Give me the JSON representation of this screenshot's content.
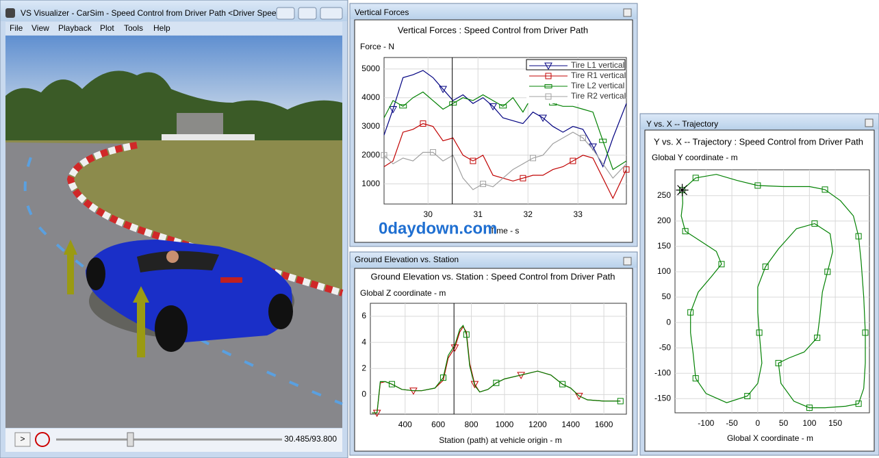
{
  "visualizer": {
    "window_title": "VS Visualizer - CarSim - Speed Control from Driver Path <Driver Spee...",
    "menu": [
      "File",
      "View",
      "Playback",
      "Plot",
      "Tools",
      "Help"
    ],
    "play_button": ">",
    "time": "30.485/93.800"
  },
  "watermark": "0daydown.com",
  "chart_data": [
    {
      "type": "line",
      "window_title": "Vertical Forces",
      "title": "Vertical Forces : Speed Control from Driver Path",
      "y_label": "Force - N",
      "x_label": "Time - s",
      "x": [
        29.12,
        29.3,
        29.5,
        29.7,
        29.9,
        30.1,
        30.3,
        30.5,
        30.7,
        30.9,
        31.1,
        31.3,
        31.5,
        31.7,
        31.9,
        32.1,
        32.3,
        32.5,
        32.7,
        32.9,
        33.1,
        33.3,
        33.5,
        33.7,
        33.97
      ],
      "series": [
        {
          "name": "Tire L1 vertical",
          "color": "#000080",
          "marker": "triangle",
          "values": [
            2700,
            3600,
            4700,
            4800,
            4950,
            4700,
            4300,
            3900,
            4100,
            3800,
            4000,
            3700,
            3300,
            3200,
            3100,
            3500,
            3300,
            3000,
            2800,
            3000,
            2900,
            2300,
            1600,
            2600,
            3800
          ]
        },
        {
          "name": "Tire R1 vertical",
          "color": "#c00000",
          "marker": "square",
          "values": [
            1600,
            1800,
            2800,
            2900,
            3100,
            3000,
            2500,
            2600,
            2000,
            1800,
            2000,
            1300,
            1200,
            1100,
            1200,
            1300,
            1300,
            1500,
            1600,
            1800,
            2000,
            1900,
            1200,
            500,
            1500
          ]
        },
        {
          "name": "Tire L2 vertical",
          "color": "#008000",
          "marker": "bar",
          "values": [
            3300,
            3900,
            3700,
            4000,
            4200,
            3900,
            3600,
            3800,
            4000,
            3900,
            4100,
            3900,
            3700,
            4000,
            3500,
            4100,
            3900,
            3800,
            3700,
            3700,
            3600,
            3500,
            2500,
            1500,
            1800
          ]
        },
        {
          "name": "Tire R2 vertical",
          "color": "#a0a0a0",
          "marker": "square",
          "values": [
            2000,
            1700,
            1900,
            1800,
            2100,
            2100,
            1800,
            2000,
            1200,
            800,
            1000,
            900,
            1200,
            1500,
            1700,
            1900,
            2000,
            2400,
            2600,
            2800,
            2600,
            2200,
            1700,
            1200,
            1700
          ]
        }
      ],
      "xlim": [
        29.12,
        33.97
      ],
      "ylim": [
        300,
        5400
      ],
      "xticks": [
        30,
        31,
        32,
        33
      ],
      "yticks": [
        1000,
        2000,
        3000,
        4000,
        5000
      ],
      "grid": true,
      "legend": "upper right",
      "cursor": 30.485
    },
    {
      "type": "line",
      "window_title": "Ground Elevation vs. Station",
      "title": "Ground Elevation vs. Station : Speed Control from Driver Path",
      "y_label": "Global Z coordinate - m",
      "x_label": "Station (path) at vehicle origin - m",
      "x": [
        200,
        230,
        250,
        280,
        320,
        380,
        450,
        500,
        580,
        630,
        660,
        700,
        730,
        750,
        770,
        790,
        820,
        850,
        900,
        950,
        1000,
        1100,
        1200,
        1280,
        1350,
        1400,
        1450,
        1500,
        1600,
        1700
      ],
      "series": [
        {
          "color": "#c00000",
          "marker": "triangle",
          "values": [
            -1.4,
            -1.4,
            0.9,
            1.0,
            0.8,
            0.4,
            0.3,
            0.3,
            0.5,
            1.1,
            2.8,
            3.6,
            4.8,
            5.2,
            4.8,
            2.4,
            0.8,
            0.2,
            0.4,
            0.9,
            1.2,
            1.5,
            1.8,
            1.5,
            0.8,
            0.5,
            -0.1,
            -0.4,
            -0.5,
            -0.5
          ]
        },
        {
          "color": "#008000",
          "marker": "square",
          "values": [
            -1.4,
            -1.4,
            1.0,
            1.0,
            0.8,
            0.4,
            0.3,
            0.3,
            0.5,
            1.3,
            3.0,
            3.8,
            5.0,
            5.3,
            4.6,
            2.2,
            0.7,
            0.2,
            0.4,
            0.9,
            1.2,
            1.5,
            1.8,
            1.5,
            0.8,
            0.5,
            -0.1,
            -0.4,
            -0.5,
            -0.5
          ]
        }
      ],
      "xlim": [
        190,
        1736
      ],
      "ylim": [
        -1.5,
        7
      ],
      "xticks": [
        400,
        600,
        800,
        1000,
        1200,
        1400,
        1600
      ],
      "yticks": [
        0,
        2,
        4,
        6
      ],
      "grid": true,
      "cursor": 695
    },
    {
      "type": "line",
      "window_title": "Y vs. X -- Trajectory",
      "title": "Y vs. X -- Trajectory : Speed Control from Driver Path",
      "y_label": "Global Y coordinate - m",
      "x_label": "Global X coordinate - m",
      "series": [
        {
          "color": "#008000",
          "marker": "square",
          "x": [
            -146,
            -120,
            -80,
            -40,
            0,
            50,
            100,
            130,
            160,
            185,
            195,
            200,
            205,
            208,
            208,
            205,
            195,
            170,
            130,
            100,
            70,
            45,
            40,
            60,
            90,
            115,
            120,
            125,
            135,
            145,
            140,
            110,
            75,
            40,
            15,
            0,
            0,
            3,
            8,
            0,
            -20,
            -60,
            -100,
            -120,
            -125,
            -130,
            -130,
            -115,
            -90,
            -70,
            -80,
            -110,
            -140,
            -148,
            -145,
            -146
          ],
          "values": [
            261,
            285,
            292,
            280,
            270,
            268,
            268,
            262,
            240,
            210,
            170,
            120,
            50,
            -20,
            -80,
            -130,
            -160,
            -165,
            -168,
            -168,
            -155,
            -120,
            -80,
            -70,
            -58,
            -30,
            10,
            60,
            100,
            140,
            175,
            195,
            185,
            145,
            110,
            70,
            20,
            -20,
            -80,
            -120,
            -145,
            -158,
            -140,
            -110,
            -60,
            -20,
            20,
            60,
            90,
            115,
            140,
            160,
            180,
            210,
            235,
            261
          ]
        }
      ],
      "xlim": [
        -160,
        216
      ],
      "ylim": [
        -178,
        301
      ],
      "xticks": [
        -100,
        -50,
        0,
        50,
        100,
        150
      ],
      "yticks": [
        -150,
        -100,
        -50,
        0,
        50,
        100,
        150,
        200,
        250
      ],
      "grid": true,
      "cursor": {
        "x": -146,
        "y": 261
      }
    }
  ]
}
